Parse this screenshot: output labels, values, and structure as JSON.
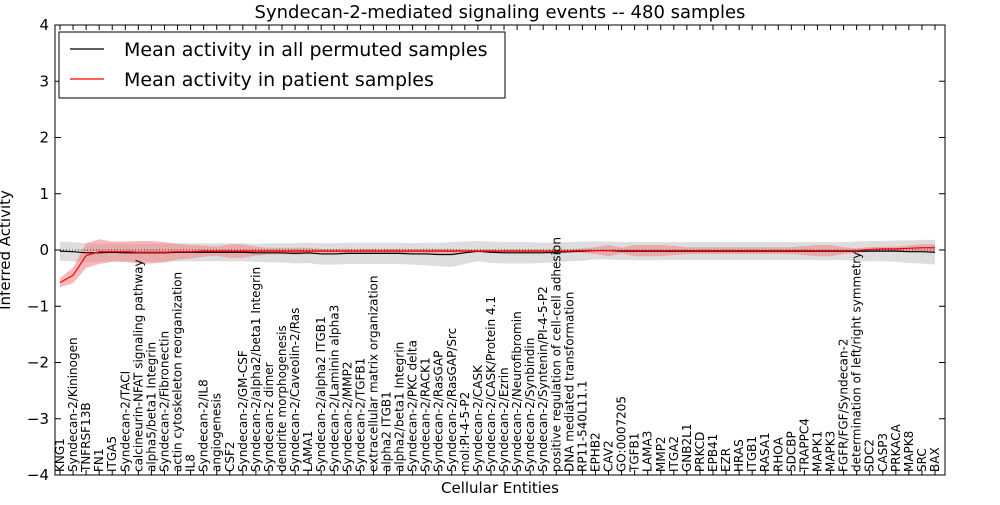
{
  "chart_data": {
    "type": "line",
    "title": "Syndecan-2-mediated signaling events -- 480 samples",
    "xlabel": "Cellular Entities",
    "ylabel": "Inferred Activity",
    "ylim": [
      -4,
      4
    ],
    "yticks": [
      -4,
      -3,
      -2,
      -1,
      0,
      1,
      2,
      3,
      4
    ],
    "ytick_labels": [
      "−4",
      "−3",
      "−2",
      "−1",
      "0",
      "1",
      "2",
      "3",
      "4"
    ],
    "legend_position": "top-left",
    "categories": [
      "KNG1",
      "Syndecan-2/Kininogen",
      "TNFRSF13B",
      "FN1",
      "ITGA5",
      "Syndecan-2/TACI",
      "calcineurin-NFAT signaling pathway",
      "alpha5/beta1 Integrin",
      "Syndecan-2/Fibronectin",
      "actin cytoskeleton reorganization",
      "IL8",
      "Syndecan-2/IL8",
      "angiogenesis",
      "CSF2",
      "Syndecan-2/GM-CSF",
      "Syndecan-2/alpha2/beta1 Integrin",
      "Syndecan-2 dimer",
      "dendrite morphogenesis",
      "Syndecan-2/Caveolin-2/Ras",
      "LAMA1",
      "Syndecan-2/alpha2 ITGB1",
      "Syndecan-2/Laminin alpha3",
      "Syndecan-2/MMP2",
      "Syndecan-2/TGFB1",
      "extracellular matrix organization",
      "alpha2 ITGB1",
      "alpha2/beta1 Integrin",
      "Syndecan-2/PKC delta",
      "Syndecan-2/RACK1",
      "Syndecan-2/RasGAP",
      "Syndecan-2/RasGAP/Src",
      "mol:PI-4-5-P2",
      "Syndecan-2/CASK",
      "Syndecan-2/CASK/Protein 4.1",
      "Syndecan-2/Ezrin",
      "Syndecan-2/Neurofibromin",
      "Syndecan-2/Synbindin",
      "Syndecan-2/Syntenin/PI-4-5-P2",
      "positive regulation of cell-cell adhesion",
      "DNA mediated transformation",
      "RP11-540L11.1",
      "EPHB2",
      "CAV2",
      "GO:0007205",
      "TGFB1",
      "LAMA3",
      "MMP2",
      "ITGA2",
      "GNB2L1",
      "PRKCD",
      "EPB41",
      "EZR",
      "HRAS",
      "ITGB1",
      "RASA1",
      "RHOA",
      "SDCBP",
      "TRAPPC4",
      "MAPK1",
      "MAPK3",
      "FGFR/FGF/Syndecan-2",
      "determination of left/right symmetry",
      "SDC2",
      "CASP3",
      "PRKACA",
      "MAPK8",
      "SRC",
      "BAX"
    ],
    "series": [
      {
        "name": "Mean activity in all permuted samples",
        "color": "#000000",
        "band_color": "#bbbbbb",
        "values": [
          -0.02,
          -0.03,
          -0.05,
          -0.05,
          -0.04,
          -0.05,
          -0.05,
          -0.05,
          -0.05,
          -0.04,
          -0.04,
          -0.04,
          -0.04,
          -0.04,
          -0.04,
          -0.05,
          -0.05,
          -0.05,
          -0.06,
          -0.05,
          -0.07,
          -0.07,
          -0.06,
          -0.06,
          -0.06,
          -0.06,
          -0.06,
          -0.07,
          -0.07,
          -0.08,
          -0.08,
          -0.05,
          -0.02,
          -0.04,
          -0.05,
          -0.05,
          -0.05,
          -0.05,
          -0.04,
          -0.03,
          -0.02,
          -0.01,
          -0.01,
          -0.02,
          -0.02,
          -0.02,
          -0.02,
          -0.02,
          -0.02,
          -0.02,
          -0.02,
          -0.02,
          -0.02,
          -0.02,
          -0.02,
          -0.02,
          -0.02,
          -0.02,
          -0.02,
          -0.02,
          -0.02,
          -0.02,
          -0.02,
          -0.02,
          -0.02,
          -0.03,
          -0.03,
          -0.04
        ],
        "spread": [
          0.17,
          0.17,
          0.17,
          0.16,
          0.16,
          0.16,
          0.16,
          0.16,
          0.16,
          0.16,
          0.16,
          0.16,
          0.16,
          0.16,
          0.16,
          0.16,
          0.17,
          0.17,
          0.18,
          0.18,
          0.19,
          0.19,
          0.19,
          0.19,
          0.19,
          0.19,
          0.19,
          0.19,
          0.2,
          0.21,
          0.22,
          0.2,
          0.18,
          0.19,
          0.19,
          0.19,
          0.19,
          0.18,
          0.18,
          0.17,
          0.17,
          0.16,
          0.16,
          0.16,
          0.16,
          0.16,
          0.16,
          0.16,
          0.16,
          0.16,
          0.16,
          0.16,
          0.16,
          0.16,
          0.16,
          0.16,
          0.16,
          0.16,
          0.16,
          0.16,
          0.16,
          0.17,
          0.18,
          0.18,
          0.19,
          0.2,
          0.21,
          0.22
        ]
      },
      {
        "name": "Mean activity in patient samples",
        "color": "#ff0000",
        "band_color": "#f08080",
        "values": [
          -0.58,
          -0.45,
          -0.1,
          -0.03,
          -0.03,
          -0.03,
          -0.04,
          -0.04,
          -0.04,
          -0.03,
          -0.03,
          -0.02,
          -0.02,
          -0.02,
          -0.02,
          -0.02,
          -0.02,
          -0.02,
          -0.02,
          -0.02,
          -0.02,
          -0.02,
          -0.02,
          -0.02,
          -0.02,
          -0.02,
          -0.02,
          -0.02,
          -0.02,
          -0.02,
          -0.02,
          -0.02,
          -0.02,
          -0.02,
          -0.02,
          -0.02,
          -0.02,
          -0.02,
          -0.02,
          -0.02,
          -0.01,
          -0.01,
          -0.01,
          -0.01,
          -0.01,
          -0.01,
          -0.01,
          -0.01,
          -0.01,
          -0.01,
          -0.01,
          -0.01,
          -0.01,
          -0.01,
          -0.01,
          -0.01,
          -0.01,
          -0.01,
          -0.01,
          -0.01,
          -0.01,
          -0.01,
          0.01,
          0.02,
          0.02,
          0.03,
          0.04,
          0.04
        ],
        "spread": [
          0.08,
          0.14,
          0.22,
          0.22,
          0.18,
          0.18,
          0.2,
          0.2,
          0.18,
          0.14,
          0.12,
          0.1,
          0.08,
          0.12,
          0.12,
          0.08,
          0.06,
          0.06,
          0.06,
          0.06,
          0.04,
          0.04,
          0.04,
          0.04,
          0.04,
          0.04,
          0.04,
          0.04,
          0.04,
          0.04,
          0.04,
          0.03,
          0.03,
          0.03,
          0.03,
          0.03,
          0.03,
          0.03,
          0.03,
          0.03,
          0.04,
          0.06,
          0.1,
          0.05,
          0.1,
          0.1,
          0.1,
          0.08,
          0.06,
          0.06,
          0.06,
          0.06,
          0.06,
          0.06,
          0.06,
          0.06,
          0.06,
          0.08,
          0.1,
          0.1,
          0.06,
          0.04,
          0.04,
          0.04,
          0.04,
          0.05,
          0.06,
          0.06
        ]
      }
    ],
    "zero_line": 0
  }
}
